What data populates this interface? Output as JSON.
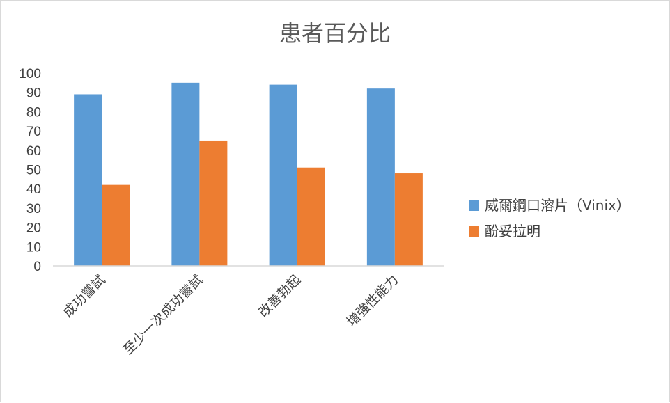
{
  "chart_data": {
    "type": "bar",
    "title": "患者百分比",
    "categories": [
      "成功嘗試",
      "至少一次成功嘗試",
      "改善勃起",
      "增強性能力"
    ],
    "series": [
      {
        "name": "威爾鋼口溶片（Vinix）",
        "values": [
          89,
          95,
          94,
          92
        ],
        "color": "#5B9BD5"
      },
      {
        "name": "酚妥拉明",
        "values": [
          42,
          65,
          51,
          48
        ],
        "color": "#ED7D31"
      }
    ],
    "ylim": [
      0,
      100
    ],
    "yticks": [
      0,
      10,
      20,
      30,
      40,
      50,
      60,
      70,
      80,
      90,
      100
    ],
    "grid": false,
    "legend": "right"
  }
}
